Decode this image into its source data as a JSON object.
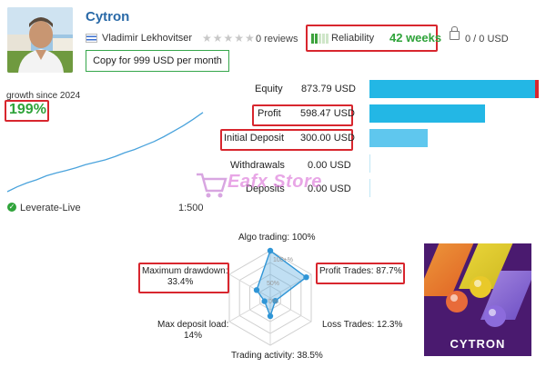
{
  "profile": {
    "name": "Cytron",
    "author": "Vladimir Lekhovitser",
    "reviews": "0 reviews",
    "reliability_label": "Reliability",
    "reliability_weeks": "42 weeks",
    "subscribers": "0 / 0 USD",
    "copy_label": "Copy for 999 USD per month",
    "icons": [
      "avatar",
      "flag-icon",
      "star-icon",
      "reliability-bars-icon",
      "lock-icon"
    ]
  },
  "growth": {
    "label": "growth since 2024",
    "value": "199%",
    "account": "Leverate-Live",
    "leverage": "1:500",
    "chart_data": {
      "type": "line",
      "x": [
        0,
        1,
        2,
        3,
        4,
        5,
        6,
        7,
        8,
        9,
        10,
        11,
        12,
        13,
        14,
        15,
        16,
        17,
        18,
        19,
        20
      ],
      "values": [
        0,
        12,
        22,
        30,
        40,
        47,
        53,
        60,
        68,
        74,
        80,
        88,
        98,
        106,
        116,
        126,
        138,
        152,
        166,
        182,
        199
      ],
      "ylim": [
        0,
        210
      ]
    }
  },
  "stats": {
    "items": [
      {
        "label": "Equity",
        "value": "873.79 USD",
        "amount": 873.79
      },
      {
        "label": "Profit",
        "value": "598.47 USD",
        "amount": 598.47
      },
      {
        "label": "Initial Deposit",
        "value": "300.00 USD",
        "amount": 300.0
      },
      {
        "label": "Withdrawals",
        "value": "0.00 USD",
        "amount": 0
      },
      {
        "label": "Deposits",
        "value": "0.00 USD",
        "amount": 0
      }
    ],
    "colors": {
      "equity": "#23b7e5",
      "profit": "#23b7e5",
      "initial": "#5fc7ee",
      "loss_tip": "#d8262e"
    }
  },
  "radar": {
    "algo": "Algo trading: 100%",
    "drawdown_label": "Maximum drawdown:",
    "drawdown_value": "33.4%",
    "profit_trades": "Profit Trades: 87.7%",
    "max_load_label": "Max deposit load:",
    "max_load_value": "14%",
    "loss_trades": "Loss Trades: 12.3%",
    "activity": "Trading activity: 38.5%",
    "ring_100": "100+%",
    "ring_50": "50%",
    "ring_0": "0%",
    "chart_data": {
      "type": "radar",
      "categories": [
        "Algo trading",
        "Profit Trades",
        "Loss Trades",
        "Trading activity",
        "Max deposit load",
        "Maximum drawdown"
      ],
      "values": [
        100,
        87.7,
        12.3,
        38.5,
        14,
        33.4
      ],
      "range": [
        0,
        100
      ]
    }
  },
  "logo": {
    "text": "CYTRON"
  },
  "watermark": {
    "text": "Eafx Store"
  }
}
